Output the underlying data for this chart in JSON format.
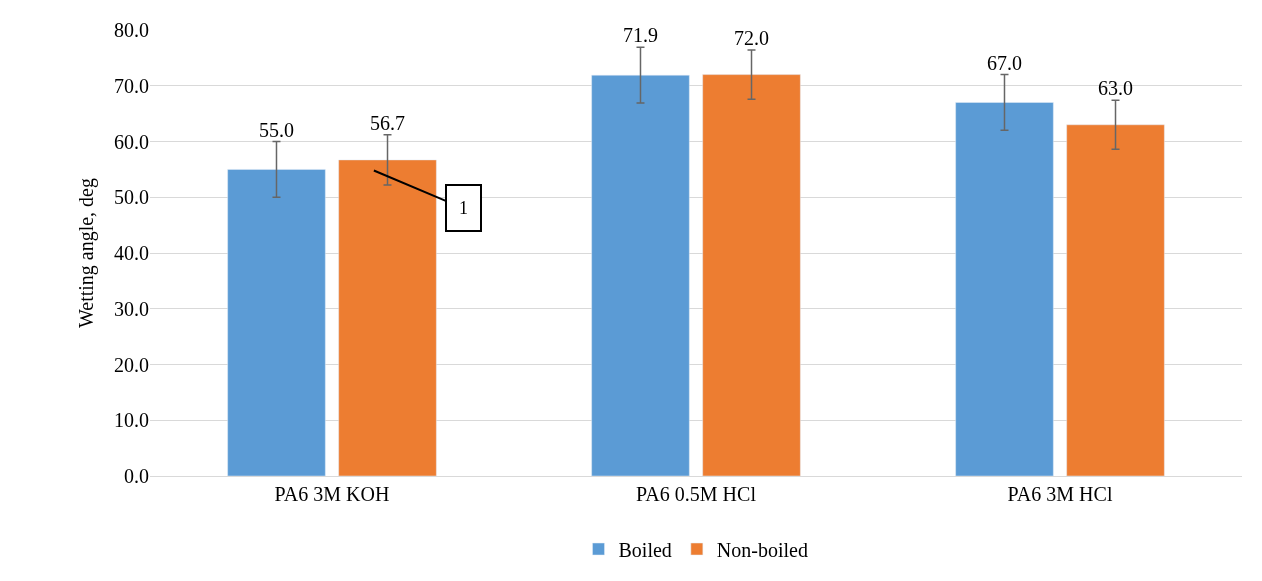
{
  "chart_data": {
    "type": "bar",
    "ylabel": "Wetting angle, deg",
    "categories": [
      "PA6 3M KOH",
      "PA6 0.5M HCl",
      "PA6 3M HCl"
    ],
    "series": [
      {
        "name": "Boiled",
        "color": "#5b9bd5",
        "values": [
          55.0,
          71.9,
          67.0
        ],
        "errors": [
          5,
          5,
          5
        ],
        "value_labels": [
          "55.0",
          "71.9",
          "67.0"
        ]
      },
      {
        "name": "Non-boiled",
        "color": "#ed7d31",
        "values": [
          56.7,
          72.0,
          63.0
        ],
        "errors": [
          4.5,
          4.4,
          4.4
        ],
        "value_labels": [
          "56.7",
          "72.0",
          "63.0"
        ]
      }
    ],
    "annotations": [
      "1"
    ],
    "ylim": [
      0,
      80
    ],
    "yticks": [
      {
        "value": 0,
        "label": "0.0"
      },
      {
        "value": 10,
        "label": "10.0"
      },
      {
        "value": 20,
        "label": "20.0"
      },
      {
        "value": 30,
        "label": "30.0"
      },
      {
        "value": 40,
        "label": "40.0"
      },
      {
        "value": 50,
        "label": "50.0"
      },
      {
        "value": 60,
        "label": "60.0"
      },
      {
        "value": 70,
        "label": "70.0"
      },
      {
        "value": 80,
        "label": "80.0"
      }
    ],
    "grid": "y",
    "legend": "bottom"
  }
}
